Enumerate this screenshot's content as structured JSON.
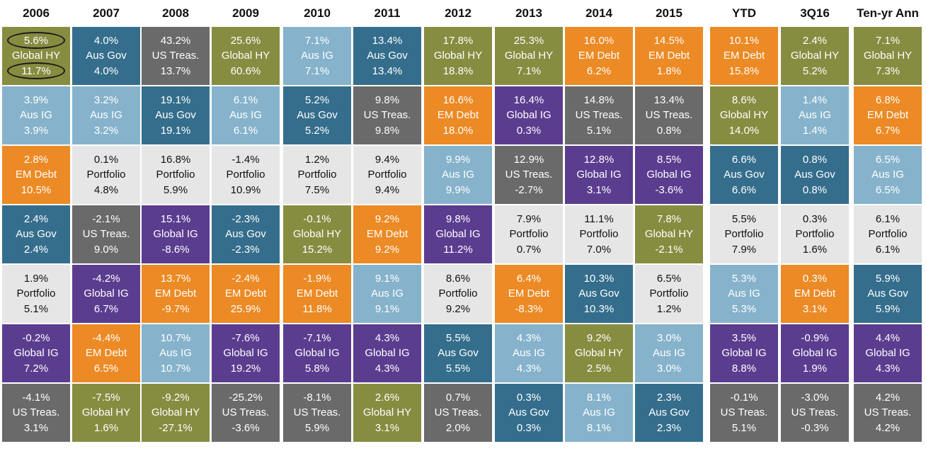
{
  "chart_data": {
    "type": "table",
    "columns": [
      "2006",
      "2007",
      "2008",
      "2009",
      "2010",
      "2011",
      "2012",
      "2013",
      "2014",
      "2015",
      "YTD",
      "3Q16",
      "Ten-yr Ann"
    ],
    "asset_colors": {
      "Global HY": "#868d41",
      "Aus Gov": "#356e8c",
      "US Treas.": "#6a6a6a",
      "Aus IG": "#86b3cb",
      "EM Debt": "#ec8a25",
      "Global IG": "#5b3d8f",
      "Portfolio": "#e6e6e6"
    },
    "text_colors": {
      "Portfolio": "#111111",
      "default": "#ffffff"
    },
    "highlight_color": "#1a1a1a",
    "rows": [
      [
        {
          "top": "5.6%",
          "asset": "Global HY",
          "bottom": "11.7%"
        },
        {
          "top": "4.0%",
          "asset": "Aus Gov",
          "bottom": "4.0%"
        },
        {
          "top": "43.2%",
          "asset": "US Treas.",
          "bottom": "13.7%"
        },
        {
          "top": "25.6%",
          "asset": "Global HY",
          "bottom": "60.6%"
        },
        {
          "top": "7.1%",
          "asset": "Aus IG",
          "bottom": "7.1%"
        },
        {
          "top": "13.4%",
          "asset": "Aus Gov",
          "bottom": "13.4%"
        },
        {
          "top": "17.8%",
          "asset": "Global HY",
          "bottom": "18.8%"
        },
        {
          "top": "25.3%",
          "asset": "Global HY",
          "bottom": "7.1%"
        },
        {
          "top": "16.0%",
          "asset": "EM Debt",
          "bottom": "6.2%"
        },
        {
          "top": "14.5%",
          "asset": "EM Debt",
          "bottom": "1.8%"
        },
        {
          "top": "10.1%",
          "asset": "EM Debt",
          "bottom": "15.8%"
        },
        {
          "top": "2.4%",
          "asset": "Global HY",
          "bottom": "5.2%"
        },
        {
          "top": "7.1%",
          "asset": "Global HY",
          "bottom": "7.3%"
        }
      ],
      [
        {
          "top": "3.9%",
          "asset": "Aus IG",
          "bottom": "3.9%"
        },
        {
          "top": "3.2%",
          "asset": "Aus IG",
          "bottom": "3.2%"
        },
        {
          "top": "19.1%",
          "asset": "Aus Gov",
          "bottom": "19.1%"
        },
        {
          "top": "6.1%",
          "asset": "Aus IG",
          "bottom": "6.1%"
        },
        {
          "top": "5.2%",
          "asset": "Aus Gov",
          "bottom": "5.2%"
        },
        {
          "top": "9.8%",
          "asset": "US Treas.",
          "bottom": "9.8%"
        },
        {
          "top": "16.6%",
          "asset": "EM Debt",
          "bottom": "18.0%"
        },
        {
          "top": "16.4%",
          "asset": "Global IG",
          "bottom": "0.3%"
        },
        {
          "top": "14.8%",
          "asset": "US Treas.",
          "bottom": "5.1%"
        },
        {
          "top": "13.4%",
          "asset": "US Treas.",
          "bottom": "0.8%"
        },
        {
          "top": "8.6%",
          "asset": "Global HY",
          "bottom": "14.0%"
        },
        {
          "top": "1.4%",
          "asset": "Aus IG",
          "bottom": "1.4%"
        },
        {
          "top": "6.8%",
          "asset": "EM Debt",
          "bottom": "6.7%"
        }
      ],
      [
        {
          "top": "2.8%",
          "asset": "EM Debt",
          "bottom": "10.5%"
        },
        {
          "top": "0.1%",
          "asset": "Portfolio",
          "bottom": "4.8%"
        },
        {
          "top": "16.8%",
          "asset": "Portfolio",
          "bottom": "5.9%"
        },
        {
          "top": "-1.4%",
          "asset": "Portfolio",
          "bottom": "10.9%"
        },
        {
          "top": "1.2%",
          "asset": "Portfolio",
          "bottom": "7.5%"
        },
        {
          "top": "9.4%",
          "asset": "Portfolio",
          "bottom": "9.4%"
        },
        {
          "top": "9.9%",
          "asset": "Aus IG",
          "bottom": "9.9%"
        },
        {
          "top": "12.9%",
          "asset": "US Treas.",
          "bottom": "-2.7%"
        },
        {
          "top": "12.8%",
          "asset": "Global IG",
          "bottom": "3.1%"
        },
        {
          "top": "8.5%",
          "asset": "Global IG",
          "bottom": "-3.6%"
        },
        {
          "top": "6.6%",
          "asset": "Aus Gov",
          "bottom": "6.6%"
        },
        {
          "top": "0.8%",
          "asset": "Aus Gov",
          "bottom": "0.8%"
        },
        {
          "top": "6.5%",
          "asset": "Aus IG",
          "bottom": "6.5%"
        }
      ],
      [
        {
          "top": "2.4%",
          "asset": "Aus Gov",
          "bottom": "2.4%"
        },
        {
          "top": "-2.1%",
          "asset": "US Treas.",
          "bottom": "9.0%"
        },
        {
          "top": "15.1%",
          "asset": "Global IG",
          "bottom": "-8.6%"
        },
        {
          "top": "-2.3%",
          "asset": "Aus Gov",
          "bottom": "-2.3%"
        },
        {
          "top": "-0.1%",
          "asset": "Global HY",
          "bottom": "15.2%"
        },
        {
          "top": "9.2%",
          "asset": "EM Debt",
          "bottom": "9.2%"
        },
        {
          "top": "9.8%",
          "asset": "Global IG",
          "bottom": "11.2%"
        },
        {
          "top": "7.9%",
          "asset": "Portfolio",
          "bottom": "0.7%"
        },
        {
          "top": "11.1%",
          "asset": "Portfolio",
          "bottom": "7.0%"
        },
        {
          "top": "7.8%",
          "asset": "Global HY",
          "bottom": "-2.1%"
        },
        {
          "top": "5.5%",
          "asset": "Portfolio",
          "bottom": "7.9%"
        },
        {
          "top": "0.3%",
          "asset": "Portfolio",
          "bottom": "1.6%"
        },
        {
          "top": "6.1%",
          "asset": "Portfolio",
          "bottom": "6.1%"
        }
      ],
      [
        {
          "top": "1.9%",
          "asset": "Portfolio",
          "bottom": "5.1%"
        },
        {
          "top": "-4.2%",
          "asset": "Global IG",
          "bottom": "6.7%"
        },
        {
          "top": "13.7%",
          "asset": "EM Debt",
          "bottom": "-9.7%"
        },
        {
          "top": "-2.4%",
          "asset": "EM Debt",
          "bottom": "25.9%"
        },
        {
          "top": "-1.9%",
          "asset": "EM Debt",
          "bottom": "11.8%"
        },
        {
          "top": "9.1%",
          "asset": "Aus IG",
          "bottom": "9.1%"
        },
        {
          "top": "8.6%",
          "asset": "Portfolio",
          "bottom": "9.2%"
        },
        {
          "top": "6.4%",
          "asset": "EM Debt",
          "bottom": "-8.3%"
        },
        {
          "top": "10.3%",
          "asset": "Aus Gov",
          "bottom": "10.3%"
        },
        {
          "top": "6.5%",
          "asset": "Portfolio",
          "bottom": "1.2%"
        },
        {
          "top": "5.3%",
          "asset": "Aus IG",
          "bottom": "5.3%"
        },
        {
          "top": "0.3%",
          "asset": "EM Debt",
          "bottom": "3.1%"
        },
        {
          "top": "5.9%",
          "asset": "Aus Gov",
          "bottom": "5.9%"
        }
      ],
      [
        {
          "top": "-0.2%",
          "asset": "Global IG",
          "bottom": "7.2%"
        },
        {
          "top": "-4.4%",
          "asset": "EM Debt",
          "bottom": "6.5%"
        },
        {
          "top": "10.7%",
          "asset": "Aus IG",
          "bottom": "10.7%"
        },
        {
          "top": "-7.6%",
          "asset": "Global IG",
          "bottom": "19.2%"
        },
        {
          "top": "-7.1%",
          "asset": "Global IG",
          "bottom": "5.8%"
        },
        {
          "top": "4.3%",
          "asset": "Global IG",
          "bottom": "4.3%"
        },
        {
          "top": "5.5%",
          "asset": "Aus Gov",
          "bottom": "5.5%"
        },
        {
          "top": "4.3%",
          "asset": "Aus IG",
          "bottom": "4.3%"
        },
        {
          "top": "9.2%",
          "asset": "Global HY",
          "bottom": "2.5%"
        },
        {
          "top": "3.0%",
          "asset": "Aus IG",
          "bottom": "3.0%"
        },
        {
          "top": "3.5%",
          "asset": "Global IG",
          "bottom": "8.8%"
        },
        {
          "top": "-0.9%",
          "asset": "Global IG",
          "bottom": "1.9%"
        },
        {
          "top": "4.4%",
          "asset": "Global IG",
          "bottom": "4.3%"
        }
      ],
      [
        {
          "top": "-4.1%",
          "asset": "US Treas.",
          "bottom": "3.1%"
        },
        {
          "top": "-7.5%",
          "asset": "Global HY",
          "bottom": "1.6%"
        },
        {
          "top": "-9.2%",
          "asset": "Global HY",
          "bottom": "-27.1%"
        },
        {
          "top": "-25.2%",
          "asset": "US Treas.",
          "bottom": "-3.6%"
        },
        {
          "top": "-8.1%",
          "asset": "US Treas.",
          "bottom": "5.9%"
        },
        {
          "top": "2.6%",
          "asset": "Global HY",
          "bottom": "3.1%"
        },
        {
          "top": "0.7%",
          "asset": "US Treas.",
          "bottom": "2.0%"
        },
        {
          "top": "0.3%",
          "asset": "Aus Gov",
          "bottom": "0.3%"
        },
        {
          "top": "8.1%",
          "asset": "Aus IG",
          "bottom": "8.1%"
        },
        {
          "top": "2.3%",
          "asset": "Aus Gov",
          "bottom": "2.3%"
        },
        {
          "top": "-0.1%",
          "asset": "US Treas.",
          "bottom": "5.1%"
        },
        {
          "top": "-3.0%",
          "asset": "US Treas.",
          "bottom": "-0.3%"
        },
        {
          "top": "4.2%",
          "asset": "US Treas.",
          "bottom": "4.2%"
        }
      ]
    ],
    "highlighted": [
      {
        "row": 0,
        "col": 0,
        "line": "top"
      },
      {
        "row": 0,
        "col": 0,
        "line": "bottom"
      }
    ]
  }
}
